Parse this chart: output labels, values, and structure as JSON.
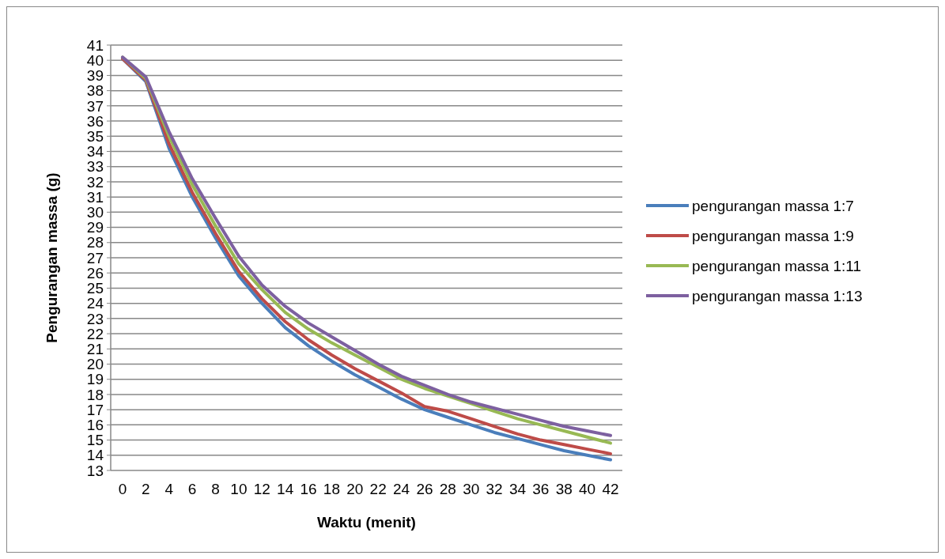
{
  "chart_data": {
    "type": "line",
    "xlabel": "Waktu (menit)",
    "ylabel": "Pengurangan massa (g)",
    "categories": [
      "0",
      "2",
      "4",
      "6",
      "8",
      "10",
      "12",
      "14",
      "16",
      "18",
      "20",
      "22",
      "24",
      "26",
      "28",
      "30",
      "32",
      "34",
      "36",
      "38",
      "40",
      "42"
    ],
    "series": [
      {
        "name": "pengurangan massa 1:7",
        "color": "#4a7ebb",
        "values": [
          40.1,
          38.6,
          34.2,
          31.0,
          28.3,
          25.8,
          24.0,
          22.4,
          21.2,
          20.2,
          19.3,
          18.5,
          17.7,
          17.0,
          16.5,
          16.0,
          15.5,
          15.1,
          14.7,
          14.3,
          14.0,
          13.7
        ]
      },
      {
        "name": "pengurangan massa 1:9",
        "color": "#be4b48",
        "values": [
          40.1,
          38.7,
          34.5,
          31.3,
          28.6,
          26.1,
          24.3,
          22.8,
          21.6,
          20.6,
          19.7,
          18.9,
          18.1,
          17.2,
          16.9,
          16.4,
          15.9,
          15.4,
          15.0,
          14.7,
          14.4,
          14.1
        ]
      },
      {
        "name": "pengurangan massa 1:11",
        "color": "#98b954",
        "values": [
          40.2,
          38.8,
          35.0,
          31.8,
          29.1,
          26.6,
          24.9,
          23.4,
          22.3,
          21.4,
          20.6,
          19.8,
          19.0,
          18.4,
          17.9,
          17.4,
          16.9,
          16.4,
          16.0,
          15.6,
          15.2,
          14.8
        ]
      },
      {
        "name": "pengurangan massa 1:13",
        "color": "#7d60a0",
        "values": [
          40.2,
          38.9,
          35.3,
          32.2,
          29.6,
          27.1,
          25.2,
          23.8,
          22.7,
          21.8,
          20.9,
          20.0,
          19.2,
          18.6,
          18.0,
          17.5,
          17.1,
          16.7,
          16.3,
          15.9,
          15.6,
          15.3
        ]
      }
    ],
    "ylim": [
      13,
      41
    ],
    "yticks": [
      13,
      14,
      15,
      16,
      17,
      18,
      19,
      20,
      21,
      22,
      23,
      24,
      25,
      26,
      27,
      28,
      29,
      30,
      31,
      32,
      33,
      34,
      35,
      36,
      37,
      38,
      39,
      40,
      41
    ],
    "grid": "y",
    "legend": "right"
  }
}
